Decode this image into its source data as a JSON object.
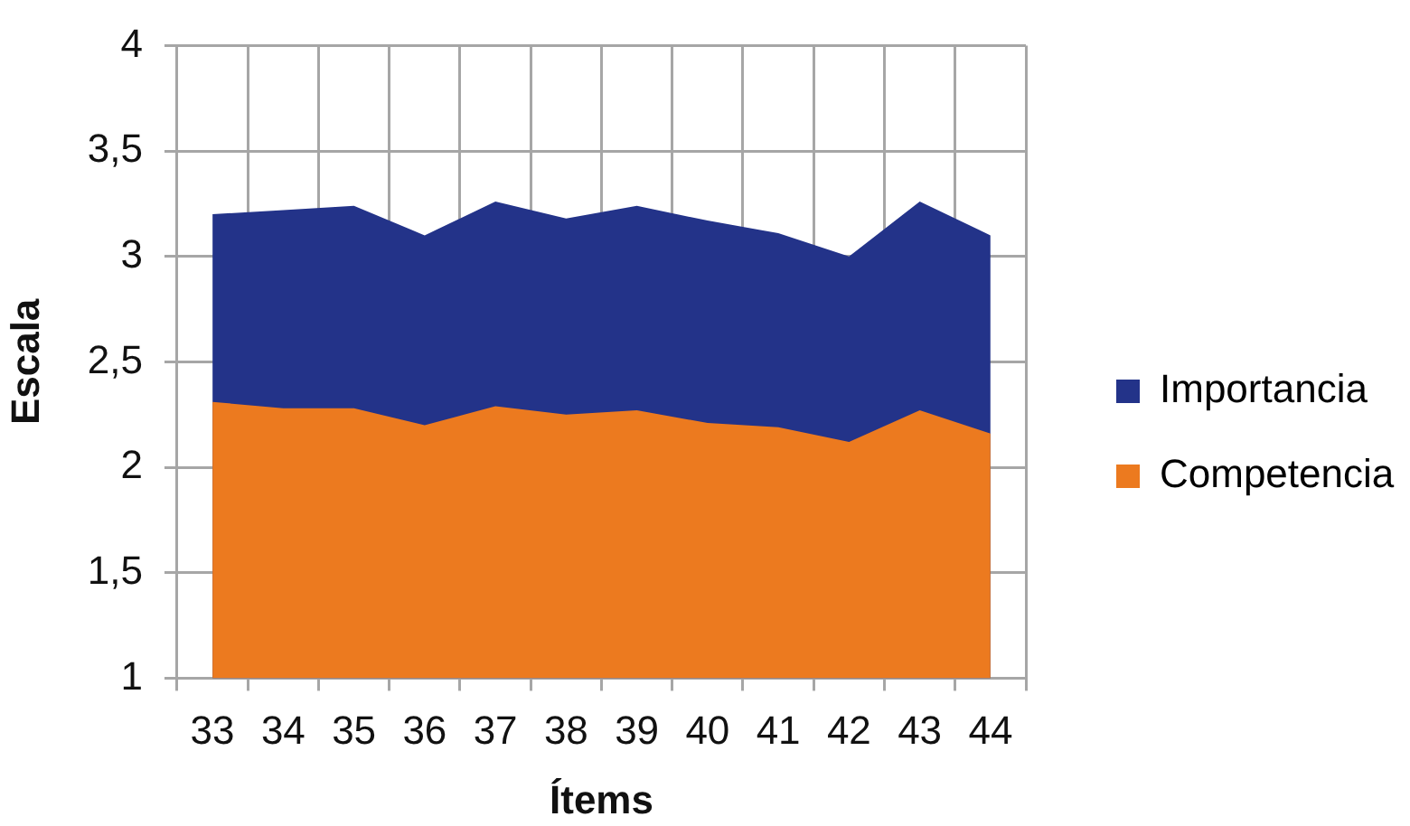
{
  "chart_data": {
    "type": "area",
    "xlabel": "Ítems",
    "ylabel": "Escala",
    "categories": [
      "33",
      "34",
      "35",
      "36",
      "37",
      "38",
      "39",
      "40",
      "41",
      "42",
      "43",
      "44"
    ],
    "series": [
      {
        "name": "Importancia",
        "color": "#233389",
        "values": [
          3.2,
          3.22,
          3.24,
          3.1,
          3.26,
          3.18,
          3.24,
          3.17,
          3.11,
          3.0,
          3.26,
          3.1
        ]
      },
      {
        "name": "Competencia",
        "color": "#ec7a1f",
        "values": [
          2.31,
          2.28,
          2.28,
          2.2,
          2.29,
          2.25,
          2.27,
          2.21,
          2.19,
          2.12,
          2.27,
          2.16
        ]
      }
    ],
    "ylim": [
      1,
      4
    ],
    "yticks": [
      1,
      {
        "value": 1.5,
        "label": "1,5"
      },
      2,
      {
        "value": 2.5,
        "label": "2,5"
      },
      3,
      {
        "value": 3.5,
        "label": "3,5"
      },
      4
    ],
    "grid": true,
    "legend": "right"
  }
}
